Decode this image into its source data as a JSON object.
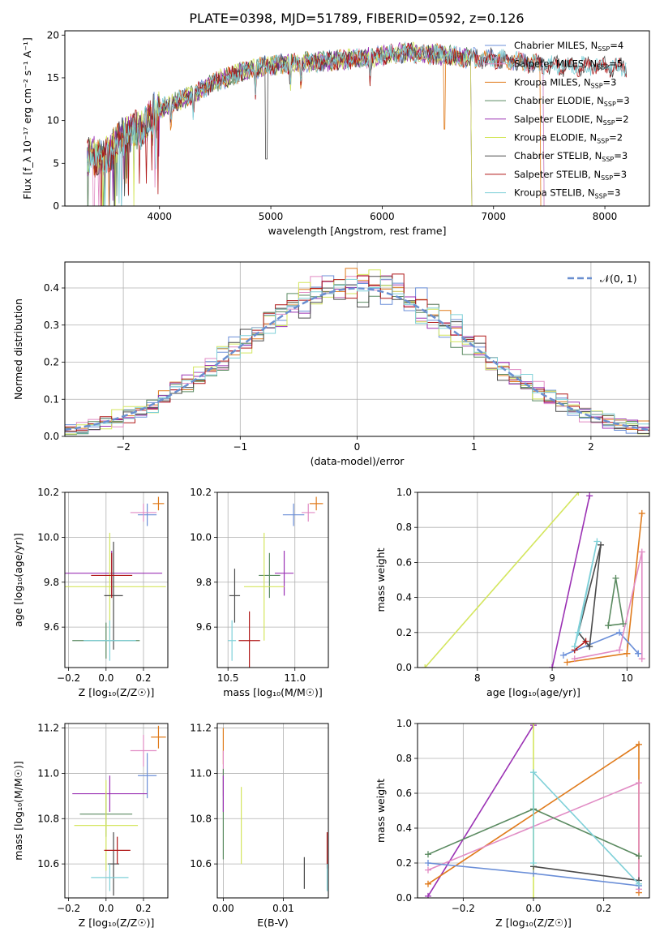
{
  "figure_title": "PLATE=0398, MJD=51789, FIBERID=0592, z=0.126",
  "colors": {
    "chabrier_miles": "#6b8fd8",
    "salpeter_miles": "#e18bc4",
    "kroupa_miles": "#e07b1c",
    "chabrier_elodie": "#5a8a60",
    "salpeter_elodie": "#9b32b4",
    "kroupa_elodie": "#d4e65e",
    "chabrier_stelib": "#4a4a4a",
    "salpeter_stelib": "#b01818",
    "kroupa_stelib": "#7fd0d8",
    "normal": "#6a8fd0",
    "grid": "#b0b0b0"
  },
  "chart_data": [
    {
      "id": "spectrum",
      "type": "line",
      "xlabel": "wavelength [Angstrom, rest frame]",
      "ylabel": "Flux [f_λ 10⁻¹⁷ erg cm⁻² s⁻¹ A⁻¹]",
      "xlim": [
        3150,
        8400
      ],
      "ylim": [
        0,
        20.5
      ],
      "xticks": [
        "4000",
        "5000",
        "6000",
        "7000",
        "8000"
      ],
      "yticks": [
        "0",
        "5",
        "10",
        "15",
        "20"
      ],
      "grid": false,
      "legend_placement": "top-right",
      "continuum": [
        [
          3350,
          5.8
        ],
        [
          3500,
          5.6
        ],
        [
          3700,
          8.5
        ],
        [
          3850,
          9.0
        ],
        [
          3950,
          11.0
        ],
        [
          4100,
          12.0
        ],
        [
          4300,
          13.0
        ],
        [
          4500,
          14.5
        ],
        [
          4800,
          16.0
        ],
        [
          5000,
          16.5
        ],
        [
          5200,
          16.7
        ],
        [
          5500,
          17.0
        ],
        [
          5800,
          17.2
        ],
        [
          6000,
          17.6
        ],
        [
          6200,
          18.0
        ],
        [
          6400,
          17.8
        ],
        [
          6600,
          17.6
        ],
        [
          6800,
          17.3
        ],
        [
          7000,
          17.2
        ],
        [
          7200,
          17.0
        ],
        [
          7400,
          16.6
        ],
        [
          7600,
          16.4
        ],
        [
          7800,
          16.3
        ],
        [
          8200,
          16.2
        ]
      ],
      "series": [
        {
          "name": "Chabrier MILES, N",
          "sub": "SSP",
          "suffix": "=4",
          "color_key": "chabrier_miles",
          "xmax": 7450
        },
        {
          "name": "Salpeter MILES, N",
          "sub": "SSP",
          "suffix": "=5",
          "color_key": "salpeter_miles",
          "xmax": 7450
        },
        {
          "name": "Kroupa MILES, N",
          "sub": "SSP",
          "suffix": "=3",
          "color_key": "kroupa_miles",
          "xmax": 7420
        },
        {
          "name": "Chabrier ELODIE, N",
          "sub": "SSP",
          "suffix": "=3",
          "color_key": "chabrier_elodie",
          "xmax": 6800
        },
        {
          "name": "Salpeter ELODIE, N",
          "sub": "SSP",
          "suffix": "=2",
          "color_key": "salpeter_elodie",
          "xmax": 6800
        },
        {
          "name": "Kroupa ELODIE, N",
          "sub": "SSP",
          "suffix": "=2",
          "color_key": "kroupa_elodie",
          "xmax": 6800
        },
        {
          "name": "Chabrier STELIB, N",
          "sub": "SSP",
          "suffix": "=3",
          "color_key": "chabrier_stelib",
          "xmax": 8200
        },
        {
          "name": "Salpeter STELIB, N",
          "sub": "SSP",
          "suffix": "=3",
          "color_key": "salpeter_stelib",
          "xmax": 8200
        },
        {
          "name": "Kroupa STELIB, N",
          "sub": "SSP",
          "suffix": "=3",
          "color_key": "kroupa_stelib",
          "xmax": 8200
        }
      ]
    },
    {
      "id": "residuals",
      "type": "histogram",
      "xlabel": "(data-model)/error",
      "ylabel": "Normed distribution",
      "xlim": [
        -2.5,
        2.5
      ],
      "ylim": [
        0,
        0.47
      ],
      "xticks": [
        "−2",
        "−1",
        "0",
        "1",
        "2"
      ],
      "yticks": [
        "0.0",
        "0.1",
        "0.2",
        "0.3",
        "0.4"
      ],
      "grid": true,
      "bin_width": 0.1,
      "legend": "𝒩(0, 1)",
      "legend_placement": "top-right"
    },
    {
      "id": "age_vs_Z",
      "type": "errorbar",
      "xlabel": "Z [log₁₀(Z/Z☉)]",
      "ylabel": "age  [log₁₀(age/yr)]",
      "xlim": [
        -0.22,
        0.33
      ],
      "ylim": [
        9.42,
        10.2
      ],
      "xticks": [
        "−0.2",
        "0.0",
        "0.2"
      ],
      "yticks": [
        "9.6",
        "9.8",
        "10.0",
        "10.2"
      ],
      "grid": true,
      "points": [
        {
          "color_key": "chabrier_miles",
          "x": 0.22,
          "y": 10.1,
          "xerr": 0.05,
          "yerr": 0.05
        },
        {
          "color_key": "salpeter_miles",
          "x": 0.2,
          "y": 10.11,
          "xerr": 0.07,
          "yerr": 0.04
        },
        {
          "color_key": "kroupa_miles",
          "x": 0.28,
          "y": 10.15,
          "xerr": 0.03,
          "yerr": 0.03
        },
        {
          "color_key": "chabrier_elodie",
          "x": 0.0,
          "y": 9.54,
          "xerr": 0.18,
          "yerr": 0.08
        },
        {
          "color_key": "salpeter_elodie",
          "x": 0.03,
          "y": 9.84,
          "xerr": 0.27,
          "yerr": 0.1
        },
        {
          "color_key": "kroupa_elodie",
          "x": 0.02,
          "y": 9.78,
          "xerr": 0.3,
          "yerr": 0.24
        },
        {
          "color_key": "chabrier_stelib",
          "x": 0.04,
          "y": 9.74,
          "xerr": 0.05,
          "yerr": 0.24
        },
        {
          "color_key": "salpeter_stelib",
          "x": 0.03,
          "y": 9.83,
          "xerr": 0.11,
          "yerr": 0.1
        },
        {
          "color_key": "kroupa_stelib",
          "x": 0.02,
          "y": 9.54,
          "xerr": 0.14,
          "yerr": 0.09
        }
      ]
    },
    {
      "id": "age_vs_mass",
      "type": "errorbar",
      "xlabel": "mass [log₁₀(M/M☉)]",
      "ylabel": "",
      "xlim": [
        10.42,
        11.25
      ],
      "ylim": [
        9.42,
        10.2
      ],
      "xticks": [
        "10.5",
        "11.0"
      ],
      "yticks": [
        "9.6",
        "9.8",
        "10.0",
        "10.2"
      ],
      "grid": true,
      "points": [
        {
          "color_key": "chabrier_miles",
          "x": 10.99,
          "y": 10.1,
          "xerr": 0.08,
          "yerr": 0.05
        },
        {
          "color_key": "salpeter_miles",
          "x": 11.1,
          "y": 10.11,
          "xerr": 0.05,
          "yerr": 0.04
        },
        {
          "color_key": "kroupa_miles",
          "x": 11.16,
          "y": 10.15,
          "xerr": 0.05,
          "yerr": 0.03
        },
        {
          "color_key": "chabrier_elodie",
          "x": 10.81,
          "y": 9.83,
          "xerr": 0.08,
          "yerr": 0.1
        },
        {
          "color_key": "salpeter_elodie",
          "x": 10.92,
          "y": 9.84,
          "xerr": 0.07,
          "yerr": 0.1
        },
        {
          "color_key": "kroupa_elodie",
          "x": 10.77,
          "y": 9.78,
          "xerr": 0.15,
          "yerr": 0.24
        },
        {
          "color_key": "chabrier_stelib",
          "x": 10.55,
          "y": 9.74,
          "xerr": 0.04,
          "yerr": 0.12
        },
        {
          "color_key": "salpeter_stelib",
          "x": 10.66,
          "y": 9.54,
          "xerr": 0.08,
          "yerr": 0.13
        },
        {
          "color_key": "kroupa_stelib",
          "x": 10.53,
          "y": 9.54,
          "xerr": 0.03,
          "yerr": 0.09
        }
      ]
    },
    {
      "id": "weight_vs_age",
      "type": "line",
      "xlabel": "age  [log₁₀(age/yr)]",
      "ylabel": "mass weight",
      "xlim": [
        7.2,
        10.3
      ],
      "ylim": [
        0,
        1.0
      ],
      "xticks": [
        "8",
        "9",
        "10"
      ],
      "yticks": [
        "0.0",
        "0.2",
        "0.4",
        "0.6",
        "0.8",
        "1.0"
      ],
      "grid": true,
      "series": [
        {
          "color_key": "kroupa_elodie",
          "points": [
            [
              7.3,
              0.0
            ],
            [
              9.35,
              1.0
            ]
          ]
        },
        {
          "color_key": "salpeter_elodie",
          "points": [
            [
              9.0,
              0.0
            ],
            [
              9.5,
              0.98
            ],
            [
              9.0,
              0.0
            ]
          ]
        },
        {
          "color_key": "kroupa_miles",
          "points": [
            [
              10.0,
              0.08
            ],
            [
              10.2,
              0.88
            ],
            [
              10.0,
              0.08
            ],
            [
              9.2,
              0.03
            ]
          ]
        },
        {
          "color_key": "chabrier_miles",
          "points": [
            [
              9.15,
              0.07
            ],
            [
              9.9,
              0.2
            ],
            [
              10.15,
              0.08
            ],
            [
              10.15,
              0.08
            ]
          ]
        },
        {
          "color_key": "salpeter_miles",
          "points": [
            [
              9.3,
              0.05
            ],
            [
              9.9,
              0.1
            ],
            [
              10.2,
              0.66
            ],
            [
              10.2,
              0.05
            ]
          ]
        },
        {
          "color_key": "chabrier_elodie",
          "points": [
            [
              9.75,
              0.24
            ],
            [
              9.85,
              0.51
            ],
            [
              9.95,
              0.25
            ],
            [
              9.75,
              0.24
            ]
          ]
        },
        {
          "color_key": "chabrier_stelib",
          "points": [
            [
              9.35,
              0.2
            ],
            [
              9.5,
              0.12
            ],
            [
              9.65,
              0.7
            ],
            [
              9.35,
              0.2
            ]
          ]
        },
        {
          "color_key": "salpeter_stelib",
          "points": [
            [
              9.3,
              0.1
            ],
            [
              9.45,
              0.15
            ]
          ]
        },
        {
          "color_key": "kroupa_stelib",
          "points": [
            [
              9.35,
              0.2
            ],
            [
              9.6,
              0.72
            ],
            [
              9.3,
              0.12
            ],
            [
              9.35,
              0.2
            ]
          ]
        }
      ]
    },
    {
      "id": "mass_vs_Z",
      "type": "errorbar",
      "xlabel": "Z [log₁₀(Z/Z☉)]",
      "ylabel": "mass [log₁₀(M/M☉)]",
      "xlim": [
        -0.22,
        0.33
      ],
      "ylim": [
        10.45,
        11.22
      ],
      "xticks": [
        "−0.2",
        "0.0",
        "0.2"
      ],
      "yticks": [
        "10.6",
        "10.8",
        "11.0",
        "11.2"
      ],
      "grid": true,
      "points": [
        {
          "color_key": "chabrier_miles",
          "x": 0.22,
          "y": 10.99,
          "xerr": 0.05,
          "yerr": 0.1
        },
        {
          "color_key": "salpeter_miles",
          "x": 0.2,
          "y": 11.1,
          "xerr": 0.07,
          "yerr": 0.07
        },
        {
          "color_key": "kroupa_miles",
          "x": 0.28,
          "y": 11.16,
          "xerr": 0.04,
          "yerr": 0.05
        },
        {
          "color_key": "chabrier_elodie",
          "x": 0.0,
          "y": 10.82,
          "xerr": 0.14,
          "yerr": 0.1
        },
        {
          "color_key": "salpeter_elodie",
          "x": 0.02,
          "y": 10.91,
          "xerr": 0.2,
          "yerr": 0.08
        },
        {
          "color_key": "kroupa_elodie",
          "x": 0.0,
          "y": 10.77,
          "xerr": 0.17,
          "yerr": 0.2
        },
        {
          "color_key": "chabrier_stelib",
          "x": 0.04,
          "y": 10.6,
          "xerr": 0.03,
          "yerr": 0.14
        },
        {
          "color_key": "salpeter_stelib",
          "x": 0.06,
          "y": 10.66,
          "xerr": 0.07,
          "yerr": 0.06
        },
        {
          "color_key": "kroupa_stelib",
          "x": 0.02,
          "y": 10.54,
          "xerr": 0.1,
          "yerr": 0.06
        }
      ]
    },
    {
      "id": "mass_vs_ebv",
      "type": "errorbar",
      "xlabel": "E(B-V)",
      "ylabel": "",
      "xlim": [
        -0.001,
        0.0175
      ],
      "ylim": [
        10.45,
        11.22
      ],
      "xticks": [
        "0.00",
        "0.01"
      ],
      "yticks": [
        "10.6",
        "10.8",
        "11.0",
        "11.2"
      ],
      "grid": true,
      "points": [
        {
          "color_key": "kroupa_miles",
          "x": 0.0,
          "y": 11.12,
          "xerr": 0,
          "yerr": 0.08
        },
        {
          "color_key": "salpeter_miles",
          "x": 0.0,
          "y": 11.0,
          "xerr": 0,
          "yerr": 0.1
        },
        {
          "color_key": "chabrier_elodie",
          "x": 0.0,
          "y": 10.82,
          "xerr": 0,
          "yerr": 0.2
        },
        {
          "color_key": "salpeter_elodie",
          "x": 0.0,
          "y": 10.91,
          "xerr": 0,
          "yerr": 0.08
        },
        {
          "color_key": "kroupa_elodie",
          "x": 0.003,
          "y": 10.77,
          "xerr": 0,
          "yerr": 0.17
        },
        {
          "color_key": "chabrier_stelib",
          "x": 0.0135,
          "y": 10.56,
          "xerr": 0,
          "yerr": 0.07
        },
        {
          "color_key": "salpeter_stelib",
          "x": 0.0173,
          "y": 10.66,
          "xerr": 0,
          "yerr": 0.08
        },
        {
          "color_key": "kroupa_stelib",
          "x": 0.0173,
          "y": 10.54,
          "xerr": 0,
          "yerr": 0.06
        }
      ]
    },
    {
      "id": "weight_vs_Z",
      "type": "line",
      "xlabel": "Z [log₁₀(Z/Z☉)]",
      "ylabel": "mass weight",
      "xlim": [
        -0.33,
        0.33
      ],
      "ylim": [
        0,
        1.0
      ],
      "xticks": [
        "−0.2",
        "0.0",
        "0.2"
      ],
      "yticks": [
        "0.0",
        "0.2",
        "0.4",
        "0.6",
        "0.8",
        "1.0"
      ],
      "grid": true,
      "series": [
        {
          "color_key": "salpeter_elodie",
          "points": [
            [
              -0.3,
              0.01
            ],
            [
              0.0,
              0.99
            ]
          ]
        },
        {
          "color_key": "kroupa_elodie",
          "points": [
            [
              0.0,
              0.0
            ],
            [
              0.0,
              1.0
            ]
          ]
        },
        {
          "color_key": "kroupa_miles",
          "points": [
            [
              -0.3,
              0.08
            ],
            [
              0.3,
              0.88
            ],
            [
              0.3,
              0.03
            ]
          ]
        },
        {
          "color_key": "salpeter_miles",
          "points": [
            [
              -0.3,
              0.16
            ],
            [
              0.3,
              0.66
            ],
            [
              0.3,
              0.05
            ]
          ]
        },
        {
          "color_key": "chabrier_elodie",
          "points": [
            [
              -0.3,
              0.25
            ],
            [
              0.0,
              0.51
            ],
            [
              0.3,
              0.24
            ]
          ]
        },
        {
          "color_key": "chabrier_miles",
          "points": [
            [
              -0.3,
              0.2
            ],
            [
              0.0,
              0.14
            ],
            [
              0.3,
              0.07
            ]
          ]
        },
        {
          "color_key": "chabrier_stelib",
          "points": [
            [
              0.0,
              0.18
            ],
            [
              0.3,
              0.1
            ]
          ]
        },
        {
          "color_key": "kroupa_stelib",
          "points": [
            [
              0.0,
              0.2
            ],
            [
              0.0,
              0.72
            ],
            [
              0.3,
              0.08
            ]
          ]
        }
      ]
    }
  ]
}
